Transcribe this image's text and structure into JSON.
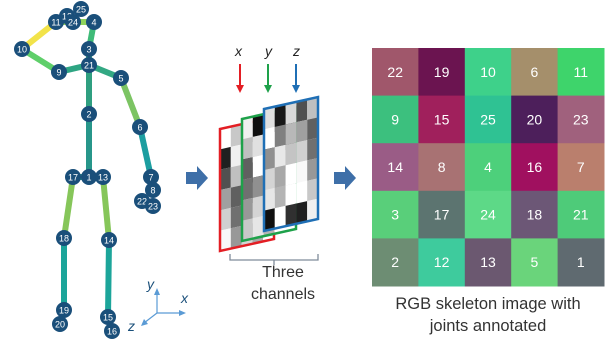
{
  "skeleton": {
    "joints": [
      {
        "id": "1",
        "color": "#1a4f7a"
      },
      {
        "id": "2",
        "color": "#1a4f7a"
      },
      {
        "id": "3",
        "color": "#1a4f7a"
      },
      {
        "id": "4",
        "color": "#1a4f7a"
      },
      {
        "id": "5",
        "color": "#1a4f7a"
      },
      {
        "id": "6",
        "color": "#1a4f7a"
      },
      {
        "id": "7",
        "color": "#1a4f7a"
      },
      {
        "id": "8",
        "color": "#1a4f7a"
      },
      {
        "id": "9",
        "color": "#1a4f7a"
      },
      {
        "id": "10",
        "color": "#1a4f7a"
      },
      {
        "id": "11",
        "color": "#1a4f7a"
      },
      {
        "id": "12",
        "color": "#1a4f7a"
      },
      {
        "id": "13",
        "color": "#1a4f7a"
      },
      {
        "id": "14",
        "color": "#1a4f7a"
      },
      {
        "id": "15",
        "color": "#1a4f7a"
      },
      {
        "id": "16",
        "color": "#1a4f7a"
      },
      {
        "id": "17",
        "color": "#1a4f7a"
      },
      {
        "id": "18",
        "color": "#1a4f7a"
      },
      {
        "id": "19",
        "color": "#1a4f7a"
      },
      {
        "id": "20",
        "color": "#1a4f7a"
      },
      {
        "id": "21",
        "color": "#1a4f7a"
      },
      {
        "id": "22",
        "color": "#1a4f7a"
      },
      {
        "id": "23",
        "color": "#1a4f7a"
      },
      {
        "id": "24",
        "color": "#1a4f7a"
      },
      {
        "id": "25",
        "color": "#1a4f7a"
      }
    ],
    "bones": [
      {
        "from": "4",
        "to": "3",
        "color": "#3fbb78"
      },
      {
        "from": "3",
        "to": "21",
        "color": "#38b07a"
      },
      {
        "from": "21",
        "to": "2",
        "color": "#2f9f80"
      },
      {
        "from": "2",
        "to": "1",
        "color": "#27968a"
      },
      {
        "from": "21",
        "to": "9",
        "color": "#2ea583"
      },
      {
        "from": "9",
        "to": "10",
        "color": "#5fcf6a"
      },
      {
        "from": "10",
        "to": "11",
        "color": "#f2e34a"
      },
      {
        "from": "11",
        "to": "4",
        "color": "#8fd45c"
      },
      {
        "from": "21",
        "to": "5",
        "color": "#33a883"
      },
      {
        "from": "5",
        "to": "6",
        "color": "#7cc463"
      },
      {
        "from": "6",
        "to": "7",
        "color": "#1c9ea0"
      },
      {
        "from": "1",
        "to": "17",
        "color": "#2b9a8a"
      },
      {
        "from": "17",
        "to": "18",
        "color": "#86c65a"
      },
      {
        "from": "18",
        "to": "19",
        "color": "#1ca59a"
      },
      {
        "from": "1",
        "to": "13",
        "color": "#2b9a8a"
      },
      {
        "from": "13",
        "to": "14",
        "color": "#86c65a"
      },
      {
        "from": "14",
        "to": "15",
        "color": "#1ca59a"
      }
    ]
  },
  "axes": {
    "x": "x",
    "y": "y",
    "z": "z",
    "color": "#1a4f7a"
  },
  "channels": {
    "labels": [
      "x",
      "y",
      "z"
    ],
    "colors": [
      "#e31e24",
      "#1ea14a",
      "#1f6fb5"
    ],
    "pattern": [
      [
        "#ffffff",
        "#c8c8c8",
        "#e6e6e6",
        "#b4b4b4",
        "#ffffff"
      ],
      [
        "#202020",
        "#f0f0f0",
        "#101010",
        "#ffffff",
        "#303030"
      ],
      [
        "#505050",
        "#c0c0c0",
        "#e0e0e0",
        "#181818",
        "#d8d8d8"
      ],
      [
        "#a0a0a0",
        "#606060",
        "#ffffff",
        "#808080",
        "#b8b8b8"
      ],
      [
        "#d0d0d0",
        "#707070",
        "#909090",
        "#e8e8e8",
        "#c4c4c4"
      ],
      [
        "#f8f8f8",
        "#989898",
        "#d4d4d4",
        "#a8a8a8",
        "#ffffff"
      ]
    ],
    "caption": "Three\nchannels"
  },
  "arrow_color": "#3e6fa8",
  "rgb_grid": {
    "caption": "RGB skeleton image with\njoints annotated",
    "cells": [
      [
        {
          "label": "22",
          "color": "#a0576b"
        },
        {
          "label": "19",
          "color": "#6b1450"
        },
        {
          "label": "10",
          "color": "#3ed18a"
        },
        {
          "label": "6",
          "color": "#a58f6b"
        },
        {
          "label": "11",
          "color": "#3ed46b"
        }
      ],
      [
        {
          "label": "9",
          "color": "#3cc07e"
        },
        {
          "label": "15",
          "color": "#a0205c"
        },
        {
          "label": "25",
          "color": "#2fc293"
        },
        {
          "label": "20",
          "color": "#4d1f5b"
        },
        {
          "label": "23",
          "color": "#a0617d"
        }
      ],
      [
        {
          "label": "14",
          "color": "#9a5c86"
        },
        {
          "label": "8",
          "color": "#a87273"
        },
        {
          "label": "4",
          "color": "#4dd07b"
        },
        {
          "label": "16",
          "color": "#a0105f"
        },
        {
          "label": "7",
          "color": "#ba7f6d"
        }
      ],
      [
        {
          "label": "3",
          "color": "#59cf7a"
        },
        {
          "label": "17",
          "color": "#5c7470"
        },
        {
          "label": "24",
          "color": "#5dd987"
        },
        {
          "label": "18",
          "color": "#6c5776"
        },
        {
          "label": "21",
          "color": "#4ecb79"
        }
      ],
      [
        {
          "label": "2",
          "color": "#6d8d73"
        },
        {
          "label": "12",
          "color": "#3ecb9d"
        },
        {
          "label": "13",
          "color": "#6b5870"
        },
        {
          "label": "5",
          "color": "#6ad47b"
        },
        {
          "label": "1",
          "color": "#5f6a70"
        }
      ]
    ]
  }
}
